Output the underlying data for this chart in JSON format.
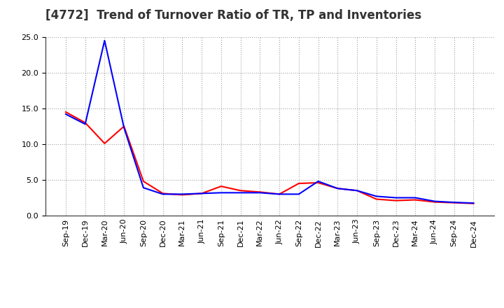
{
  "title": "[4772]  Trend of Turnover Ratio of TR, TP and Inventories",
  "xlabels": [
    "Sep-19",
    "Dec-19",
    "Mar-20",
    "Jun-20",
    "Sep-20",
    "Dec-20",
    "Mar-21",
    "Jun-21",
    "Sep-21",
    "Dec-21",
    "Mar-22",
    "Jun-22",
    "Sep-22",
    "Dec-22",
    "Mar-23",
    "Jun-23",
    "Sep-23",
    "Dec-23",
    "Mar-24",
    "Jun-24",
    "Sep-24",
    "Dec-24"
  ],
  "trade_receivables": [
    14.5,
    13.0,
    10.1,
    12.5,
    4.8,
    3.1,
    2.9,
    3.1,
    4.1,
    3.5,
    3.3,
    3.0,
    4.5,
    4.6,
    3.8,
    3.5,
    2.3,
    2.1,
    2.2,
    1.9,
    1.8,
    1.7
  ],
  "trade_payables": [
    14.2,
    12.8,
    24.5,
    12.3,
    3.9,
    3.0,
    3.0,
    3.1,
    3.2,
    3.2,
    3.2,
    3.0,
    3.0,
    4.8,
    3.8,
    3.5,
    2.7,
    2.5,
    2.5,
    2.0,
    1.85,
    1.75
  ],
  "inventories": [
    null,
    null,
    null,
    null,
    null,
    null,
    null,
    null,
    null,
    null,
    null,
    null,
    null,
    null,
    null,
    null,
    null,
    null,
    null,
    null,
    null,
    null
  ],
  "ylim": [
    0.0,
    25.0
  ],
  "yticks": [
    0.0,
    5.0,
    10.0,
    15.0,
    20.0,
    25.0
  ],
  "color_tr": "#ff0000",
  "color_tp": "#0000ff",
  "color_inv": "#008000",
  "background_color": "#ffffff",
  "grid_color": "#999999",
  "title_fontsize": 12,
  "legend_fontsize": 9,
  "tick_fontsize": 8,
  "linewidth": 1.5
}
